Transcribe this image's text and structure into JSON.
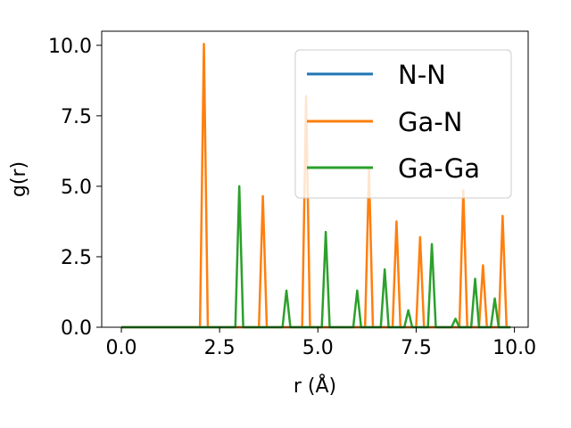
{
  "chart_data": {
    "type": "line",
    "xlabel": "r (Å)",
    "ylabel": "g(r)",
    "xlim": [
      -0.5,
      10.35
    ],
    "ylim": [
      0,
      10.5
    ],
    "xticks": [
      "0.0",
      "2.5",
      "5.0",
      "7.5",
      "10.0"
    ],
    "yticks": [
      "0.0",
      "2.5",
      "5.0",
      "7.5",
      "10.0"
    ],
    "grid": false,
    "legend_position": "top-right",
    "series": [
      {
        "name": "N-N",
        "color": "#1f77b4",
        "x": [
          0.0,
          9.9
        ],
        "y": [
          0.0,
          0.0
        ]
      },
      {
        "name": "Ga-N",
        "color": "#ff7f0e",
        "x": [
          0.0,
          2.0,
          2.1,
          2.2,
          3.5,
          3.6,
          3.7,
          4.6,
          4.7,
          4.8,
          6.2,
          6.3,
          6.4,
          6.9,
          7.0,
          7.1,
          7.5,
          7.6,
          7.7,
          8.6,
          8.7,
          8.8,
          9.1,
          9.2,
          9.3,
          9.6,
          9.7,
          9.8,
          9.9
        ],
        "y": [
          0.0,
          0.0,
          10.05,
          0.0,
          0.0,
          4.65,
          0.0,
          0.0,
          8.2,
          0.0,
          0.0,
          5.6,
          0.0,
          0.0,
          3.75,
          0.0,
          0.0,
          3.2,
          0.0,
          0.0,
          4.85,
          0.0,
          0.0,
          2.2,
          0.0,
          0.0,
          3.95,
          0.0,
          0.0
        ]
      },
      {
        "name": "Ga-Ga",
        "color": "#2ca02c",
        "x": [
          0.0,
          2.9,
          3.0,
          3.1,
          4.1,
          4.2,
          4.3,
          5.1,
          5.2,
          5.3,
          5.9,
          6.0,
          6.1,
          6.6,
          6.7,
          6.8,
          7.2,
          7.3,
          7.4,
          7.8,
          7.9,
          8.0,
          8.4,
          8.5,
          8.6,
          8.9,
          9.0,
          9.1,
          9.4,
          9.5,
          9.6,
          9.9
        ],
        "y": [
          0.0,
          0.0,
          5.0,
          0.0,
          0.0,
          1.3,
          0.0,
          0.0,
          3.38,
          0.0,
          0.0,
          1.3,
          0.0,
          0.0,
          2.05,
          0.0,
          0.0,
          0.6,
          0.0,
          0.0,
          2.95,
          0.0,
          0.0,
          0.3,
          0.0,
          0.0,
          1.72,
          0.0,
          0.0,
          1.02,
          0.0,
          0.0
        ]
      }
    ]
  }
}
